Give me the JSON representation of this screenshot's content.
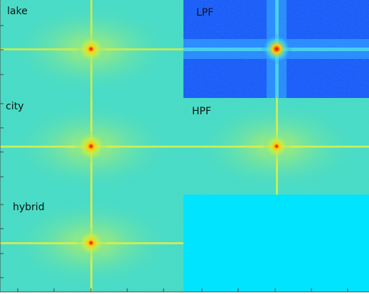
{
  "panels": [
    {
      "label": "lake"
    },
    {
      "label": "LPF"
    },
    {
      "label": "city"
    },
    {
      "label": "HPF"
    },
    {
      "label": "hybrid"
    }
  ]
}
